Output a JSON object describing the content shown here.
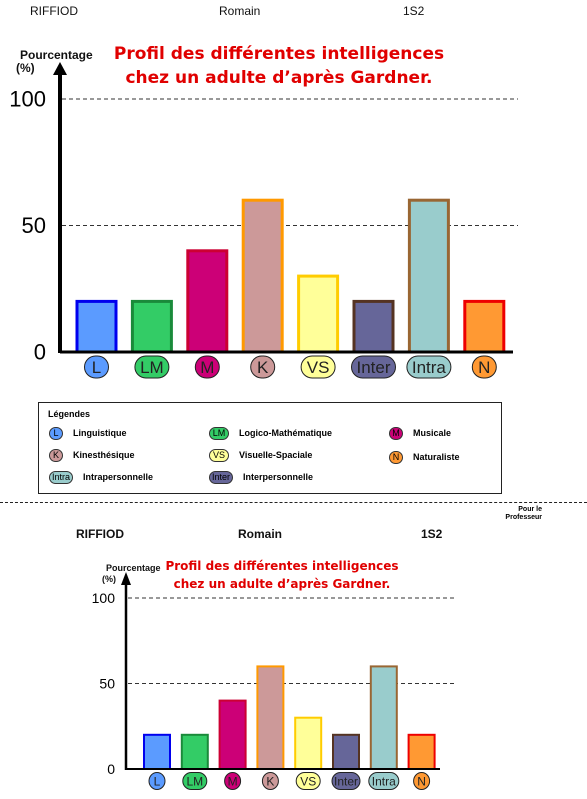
{
  "header": {
    "name": "RIFFIOD",
    "firstname": "Romain",
    "class": "1S2"
  },
  "chart_title": [
    "Profil des différentes intelligences",
    "chez un adulte d’après Gardner."
  ],
  "y_axis_label": [
    "Pourcentage",
    "(%)"
  ],
  "chart_data": [
    {
      "type": "bar",
      "title": "Profil des différentes intelligences chez un adulte d’après Gardner.",
      "ylabel": "Pourcentage (%)",
      "ylim": [
        0,
        100
      ],
      "yticks": [
        0,
        50,
        100
      ],
      "gridlines": [
        50,
        100
      ],
      "categories": [
        "L",
        "LM",
        "M",
        "K",
        "VS",
        "Inter",
        "Intra",
        "N"
      ],
      "values": [
        20,
        20,
        40,
        60,
        30,
        20,
        60,
        20
      ],
      "colors": [
        "#5b9bff",
        "#33cc66",
        "#cc0077",
        "#cc9999",
        "#ffff99",
        "#666699",
        "#99cccc",
        "#ff9933"
      ],
      "border_colors": [
        "#0000ee",
        "#1a8a3a",
        "#cc0033",
        "#ff9900",
        "#ffcc00",
        "#553322",
        "#996633",
        "#ee0000"
      ]
    },
    {
      "type": "bar",
      "title": "Profil des différentes intelligences chez un adulte d’après Gardner.",
      "ylabel": "Pourcentage (%)",
      "ylim": [
        0,
        100
      ],
      "yticks": [
        0,
        50,
        100
      ],
      "gridlines": [
        50,
        100
      ],
      "categories": [
        "L",
        "LM",
        "M",
        "K",
        "VS",
        "Inter",
        "Intra",
        "N"
      ],
      "values": [
        20,
        20,
        40,
        60,
        30,
        20,
        60,
        20
      ],
      "colors": [
        "#5b9bff",
        "#33cc66",
        "#cc0077",
        "#cc9999",
        "#ffff99",
        "#666699",
        "#99cccc",
        "#ff9933"
      ],
      "border_colors": [
        "#0000ee",
        "#1a8a3a",
        "#cc0033",
        "#ff9900",
        "#ffcc00",
        "#553322",
        "#996633",
        "#ee0000"
      ]
    }
  ],
  "legend": {
    "title": "Légendes",
    "items": [
      {
        "code": "L",
        "label": "Linguistique"
      },
      {
        "code": "LM",
        "label": "Logico-Mathématique"
      },
      {
        "code": "M",
        "label": "Musicale"
      },
      {
        "code": "K",
        "label": "Kinesthésique"
      },
      {
        "code": "VS",
        "label": "Visuelle-Spaciale"
      },
      {
        "code": "N",
        "label": "Naturaliste"
      },
      {
        "code": "Intra",
        "label": "Intrapersonnelle"
      },
      {
        "code": "Inter",
        "label": "Interpersonnelle"
      }
    ]
  },
  "footer_note": [
    "Pour le",
    "Professeur"
  ]
}
